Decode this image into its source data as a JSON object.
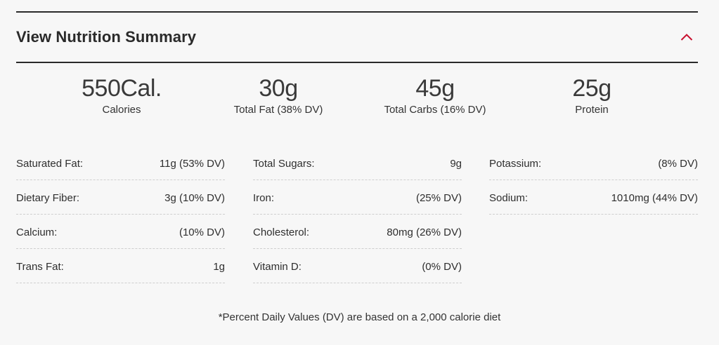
{
  "header": {
    "title": "View Nutrition Summary",
    "toggle_icon": "chevron-up-icon",
    "accent_color": "#c8102e"
  },
  "macros": [
    {
      "value": "550Cal.",
      "label": "Calories"
    },
    {
      "value": "30g",
      "label": "Total Fat (38% DV)"
    },
    {
      "value": "45g",
      "label": "Total Carbs (16% DV)"
    },
    {
      "value": "25g",
      "label": "Protein"
    }
  ],
  "nutrients": {
    "col1": [
      {
        "name": "Saturated Fat:",
        "value": "11g (53% DV)"
      },
      {
        "name": "Dietary Fiber:",
        "value": "3g (10% DV)"
      },
      {
        "name": "Calcium:",
        "value": "(10% DV)"
      },
      {
        "name": "Trans Fat:",
        "value": "1g"
      }
    ],
    "col2": [
      {
        "name": "Total Sugars:",
        "value": "9g"
      },
      {
        "name": "Iron:",
        "value": "(25% DV)"
      },
      {
        "name": "Cholesterol:",
        "value": "80mg (26% DV)"
      },
      {
        "name": "Vitamin D:",
        "value": "(0% DV)"
      }
    ],
    "col3": [
      {
        "name": "Potassium:",
        "value": "(8% DV)"
      },
      {
        "name": "Sodium:",
        "value": "1010mg (44% DV)"
      }
    ]
  },
  "footnote": "*Percent Daily Values (DV) are based on a 2,000 calorie diet"
}
